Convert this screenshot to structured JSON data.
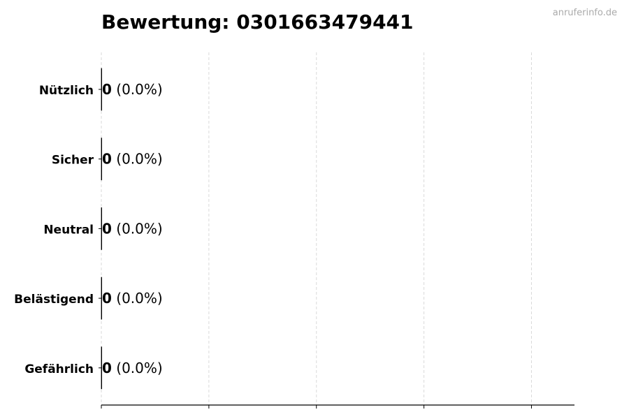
{
  "chart_data": {
    "type": "bar",
    "orientation": "horizontal",
    "title": "Bewertung: 0301663479441",
    "watermark": "anruferinfo.de",
    "categories": [
      "Nützlich",
      "Sicher",
      "Neutral",
      "Belästigend",
      "Gefährlich"
    ],
    "values": [
      0,
      0,
      0,
      0,
      0
    ],
    "value_labels": [
      "0",
      "0",
      "0",
      "0",
      "0"
    ],
    "percent_labels": [
      "(0.0%)",
      "(0.0%)",
      "(0.0%)",
      "(0.0%)",
      "(0.0%)"
    ],
    "xlabel": "",
    "ylabel": "",
    "xlim": [
      0,
      1.1
    ],
    "xticks": [
      0,
      0.25,
      0.5,
      0.75,
      1.0
    ],
    "xtick_labels_shown": false,
    "grid": "x, dashed",
    "colors": {
      "text": "#000000",
      "grid": "#d9d9d9",
      "watermark": "#aaaaaa",
      "bar_edge": "#000000"
    }
  }
}
